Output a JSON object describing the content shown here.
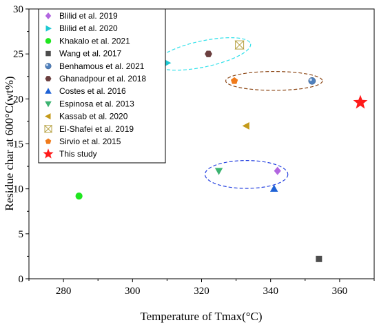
{
  "chart_data": {
    "type": "scatter",
    "title": "",
    "xlabel": "Temperature of Tmax(°C)",
    "ylabel": "Residue char at 600°C(wt%)",
    "xlim": [
      270,
      370
    ],
    "ylim": [
      0,
      30
    ],
    "xticks": [
      280,
      300,
      320,
      340,
      360
    ],
    "yticks": [
      0,
      5,
      10,
      15,
      20,
      25,
      30
    ],
    "legend_position": "top-left",
    "series": [
      {
        "name": "Blilid et al. 2019",
        "marker": "diamond",
        "color": "#b266e0",
        "points": [
          {
            "x": 342,
            "y": 12
          }
        ]
      },
      {
        "name": "Blilid et al. 2020",
        "marker": "triangle-right",
        "color": "#1ec8d2",
        "points": [
          {
            "x": 310,
            "y": 24
          }
        ]
      },
      {
        "name": "Khakalo et al. 2021",
        "marker": "circle",
        "color": "#1fe61f",
        "points": [
          {
            "x": 284.5,
            "y": 9.2
          }
        ]
      },
      {
        "name": "Wang et al. 2017",
        "marker": "square",
        "color": "#4d4d4d",
        "points": [
          {
            "x": 354,
            "y": 2.2
          }
        ]
      },
      {
        "name": "Benhamous et al. 2021",
        "marker": "sphere",
        "color": "#4f80bd",
        "points": [
          {
            "x": 352,
            "y": 22
          }
        ]
      },
      {
        "name": "Ghanadpour et al. 2018",
        "marker": "hexagon",
        "color": "#6b3f3f",
        "points": [
          {
            "x": 322,
            "y": 25
          }
        ]
      },
      {
        "name": "Costes et al. 2016",
        "marker": "triangle-up",
        "color": "#1f62d6",
        "points": [
          {
            "x": 341,
            "y": 10
          }
        ]
      },
      {
        "name": "Espinosa et al. 2013",
        "marker": "triangle-down",
        "color": "#3cb371",
        "points": [
          {
            "x": 325,
            "y": 12
          }
        ]
      },
      {
        "name": "Kassab et al. 2020",
        "marker": "triangle-left",
        "color": "#c49a1a",
        "points": [
          {
            "x": 333,
            "y": 17
          }
        ]
      },
      {
        "name": "El-Shafei et al. 2019",
        "marker": "hourglass",
        "color": "#b5a040",
        "points": [
          {
            "x": 331,
            "y": 26
          }
        ]
      },
      {
        "name": "Sirvio et al. 2015",
        "marker": "pentagon",
        "color": "#f07a1a",
        "points": [
          {
            "x": 329.5,
            "y": 22
          }
        ]
      },
      {
        "name": "This study",
        "marker": "star",
        "color": "#ff1a1a",
        "points": [
          {
            "x": 366,
            "y": 19.6
          }
        ]
      }
    ],
    "annotations": [
      {
        "shape": "dashed-ellipse",
        "color": "#2ee0ea",
        "cx": 320.5,
        "cy": 25,
        "rx": 14,
        "ry": 1.45,
        "rotate": -12
      },
      {
        "shape": "dashed-ellipse",
        "color": "#8b4513",
        "cx": 341,
        "cy": 22,
        "rx": 14,
        "ry": 1.05,
        "rotate": 0
      },
      {
        "shape": "dashed-ellipse",
        "color": "#2642e0",
        "cx": 333,
        "cy": 11.6,
        "rx": 12,
        "ry": 1.55,
        "rotate": 0
      }
    ]
  }
}
